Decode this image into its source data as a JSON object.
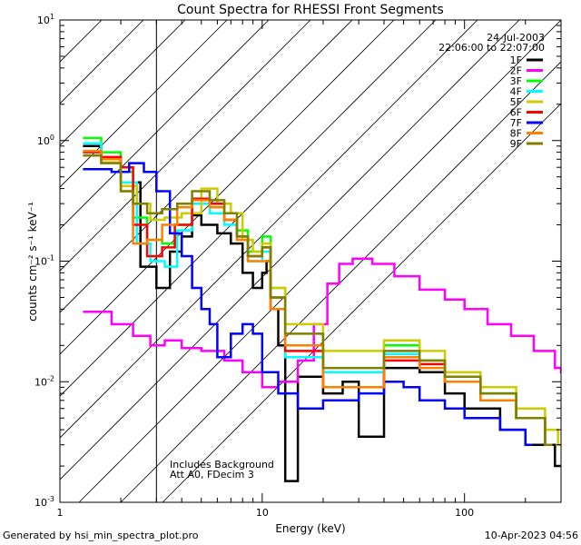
{
  "chart_data": {
    "type": "line",
    "title": "Count Spectra for RHESSI Front Segments",
    "xlabel": "Energy (keV)",
    "ylabel": "counts cm⁻² s⁻¹ keV⁻¹",
    "xscale": "log",
    "yscale": "log",
    "xlim": [
      1,
      300
    ],
    "ylim": [
      0.001,
      10
    ],
    "x_ticks": [
      {
        "value": 1,
        "label": "1"
      },
      {
        "value": 10,
        "label": "10"
      },
      {
        "value": 100,
        "label": "100"
      }
    ],
    "y_ticks": [
      {
        "value": 0.001,
        "base": "10",
        "exp": "-3"
      },
      {
        "value": 0.01,
        "base": "10",
        "exp": "-2"
      },
      {
        "value": 0.1,
        "base": "10",
        "exp": "-1"
      },
      {
        "value": 1,
        "base": "10",
        "exp": "0"
      },
      {
        "value": 10,
        "base": "10",
        "exp": "1"
      }
    ],
    "hatched_region": {
      "x_from": 1,
      "x_to": 3
    },
    "date": "24-Jul-2003",
    "time_range": "22:06:00 to 22:07:00",
    "notes": [
      "Includes Background",
      "Att A0, FDecim 3"
    ],
    "legend_position": "top-right",
    "series": [
      {
        "name": "1F",
        "color": "#000000",
        "points": [
          [
            1.3,
            0.9
          ],
          [
            1.6,
            0.72
          ],
          [
            2.0,
            0.45
          ],
          [
            2.5,
            0.09
          ],
          [
            3.0,
            0.06
          ],
          [
            3.5,
            0.12
          ],
          [
            4.0,
            0.16
          ],
          [
            4.5,
            0.24
          ],
          [
            5.0,
            0.2
          ],
          [
            6.0,
            0.17
          ],
          [
            7.0,
            0.14
          ],
          [
            8.0,
            0.08
          ],
          [
            9.0,
            0.06
          ],
          [
            10.0,
            0.08
          ],
          [
            10.5,
            0.1
          ],
          [
            11.0,
            0.04
          ],
          [
            12.0,
            0.02
          ],
          [
            13.0,
            0.0015
          ],
          [
            15.0,
            0.011
          ],
          [
            20.0,
            0.008
          ],
          [
            25.0,
            0.01
          ],
          [
            30.0,
            0.0035
          ],
          [
            40.0,
            0.013
          ],
          [
            50.0,
            0.013
          ],
          [
            60.0,
            0.012
          ],
          [
            80.0,
            0.008
          ],
          [
            100.0,
            0.006
          ],
          [
            150.0,
            0.004
          ],
          [
            200.0,
            0.003
          ],
          [
            280.0,
            0.002
          ]
        ]
      },
      {
        "name": "2F",
        "color": "#ff00ff",
        "points": [
          [
            1.3,
            0.038
          ],
          [
            1.8,
            0.03
          ],
          [
            2.3,
            0.024
          ],
          [
            2.8,
            0.02
          ],
          [
            3.3,
            0.022
          ],
          [
            4.0,
            0.019
          ],
          [
            5.0,
            0.018
          ],
          [
            6.5,
            0.015
          ],
          [
            8.0,
            0.012
          ],
          [
            10.0,
            0.009
          ],
          [
            12.0,
            0.01
          ],
          [
            15.0,
            0.015
          ],
          [
            18.0,
            0.03
          ],
          [
            21.0,
            0.065
          ],
          [
            24.0,
            0.095
          ],
          [
            28.0,
            0.105
          ],
          [
            35.0,
            0.095
          ],
          [
            45.0,
            0.075
          ],
          [
            60.0,
            0.058
          ],
          [
            80.0,
            0.048
          ],
          [
            100.0,
            0.04
          ],
          [
            130.0,
            0.03
          ],
          [
            170.0,
            0.024
          ],
          [
            220.0,
            0.018
          ],
          [
            280.0,
            0.013
          ],
          [
            300.0,
            0.012
          ]
        ]
      },
      {
        "name": "3F",
        "color": "#00ff00",
        "points": [
          [
            1.3,
            1.05
          ],
          [
            1.6,
            0.8
          ],
          [
            2.0,
            0.55
          ],
          [
            2.3,
            0.23
          ],
          [
            2.7,
            0.15
          ],
          [
            3.2,
            0.14
          ],
          [
            3.7,
            0.2
          ],
          [
            4.5,
            0.3
          ],
          [
            5.5,
            0.28
          ],
          [
            6.5,
            0.22
          ],
          [
            7.5,
            0.18
          ],
          [
            8.5,
            0.12
          ],
          [
            10.0,
            0.16
          ],
          [
            11.0,
            0.06
          ],
          [
            13.0,
            0.02
          ],
          [
            20.0,
            0.012
          ],
          [
            40.0,
            0.02
          ],
          [
            60.0,
            0.015
          ],
          [
            80.0,
            0.01
          ],
          [
            120.0,
            0.008
          ],
          [
            180.0,
            0.005
          ],
          [
            250.0,
            0.003
          ]
        ]
      },
      {
        "name": "4F",
        "color": "#00ffff",
        "points": [
          [
            1.3,
            0.95
          ],
          [
            1.6,
            0.72
          ],
          [
            2.0,
            0.45
          ],
          [
            2.4,
            0.14
          ],
          [
            2.8,
            0.1
          ],
          [
            3.3,
            0.09
          ],
          [
            3.8,
            0.18
          ],
          [
            4.5,
            0.3
          ],
          [
            5.5,
            0.25
          ],
          [
            6.5,
            0.2
          ],
          [
            7.5,
            0.15
          ],
          [
            8.5,
            0.1
          ],
          [
            10.0,
            0.12
          ],
          [
            11.0,
            0.05
          ],
          [
            13.0,
            0.016
          ],
          [
            20.0,
            0.012
          ],
          [
            40.0,
            0.017
          ],
          [
            60.0,
            0.014
          ],
          [
            80.0,
            0.01
          ],
          [
            120.0,
            0.007
          ],
          [
            180.0,
            0.005
          ],
          [
            250.0,
            0.003
          ]
        ]
      },
      {
        "name": "5F",
        "color": "#cccc00",
        "points": [
          [
            1.3,
            0.82
          ],
          [
            1.6,
            0.66
          ],
          [
            2.0,
            0.42
          ],
          [
            2.4,
            0.3
          ],
          [
            2.8,
            0.22
          ],
          [
            3.3,
            0.23
          ],
          [
            4.0,
            0.25
          ],
          [
            5.0,
            0.4
          ],
          [
            6.0,
            0.3
          ],
          [
            7.0,
            0.25
          ],
          [
            8.0,
            0.15
          ],
          [
            9.0,
            0.12
          ],
          [
            10.0,
            0.14
          ],
          [
            11.0,
            0.06
          ],
          [
            13.0,
            0.03
          ],
          [
            20.0,
            0.018
          ],
          [
            40.0,
            0.022
          ],
          [
            60.0,
            0.018
          ],
          [
            80.0,
            0.012
          ],
          [
            120.0,
            0.009
          ],
          [
            180.0,
            0.006
          ],
          [
            250.0,
            0.004
          ],
          [
            290.0,
            0.003
          ]
        ]
      },
      {
        "name": "6F",
        "color": "#ff0000",
        "points": [
          [
            1.3,
            0.8
          ],
          [
            1.6,
            0.73
          ],
          [
            2.0,
            0.6
          ],
          [
            2.3,
            0.2
          ],
          [
            2.7,
            0.11
          ],
          [
            3.2,
            0.13
          ],
          [
            3.7,
            0.2
          ],
          [
            4.5,
            0.33
          ],
          [
            5.5,
            0.3
          ],
          [
            6.5,
            0.22
          ],
          [
            7.5,
            0.16
          ],
          [
            8.5,
            0.11
          ],
          [
            10.0,
            0.13
          ],
          [
            11.0,
            0.05
          ],
          [
            13.0,
            0.018
          ],
          [
            20.0,
            0.009
          ],
          [
            40.0,
            0.015
          ],
          [
            60.0,
            0.014
          ],
          [
            80.0,
            0.01
          ],
          [
            120.0,
            0.007
          ],
          [
            180.0,
            0.005
          ],
          [
            250.0,
            0.003
          ]
        ]
      },
      {
        "name": "7F",
        "color": "#0000ff",
        "points": [
          [
            1.3,
            0.58
          ],
          [
            1.8,
            0.55
          ],
          [
            2.2,
            0.65
          ],
          [
            2.6,
            0.55
          ],
          [
            3.0,
            0.38
          ],
          [
            3.5,
            0.17
          ],
          [
            4.0,
            0.11
          ],
          [
            4.5,
            0.06
          ],
          [
            5.0,
            0.04
          ],
          [
            5.5,
            0.03
          ],
          [
            6.0,
            0.016
          ],
          [
            7.0,
            0.025
          ],
          [
            8.0,
            0.03
          ],
          [
            9.0,
            0.025
          ],
          [
            10.0,
            0.012
          ],
          [
            12.0,
            0.008
          ],
          [
            15.0,
            0.006
          ],
          [
            20.0,
            0.007
          ],
          [
            30.0,
            0.008
          ],
          [
            40.0,
            0.01
          ],
          [
            50.0,
            0.009
          ],
          [
            60.0,
            0.007
          ],
          [
            80.0,
            0.006
          ],
          [
            100.0,
            0.005
          ],
          [
            150.0,
            0.004
          ],
          [
            200.0,
            0.003
          ]
        ]
      },
      {
        "name": "8F",
        "color": "#ff8000",
        "points": [
          [
            1.3,
            0.82
          ],
          [
            1.6,
            0.7
          ],
          [
            2.0,
            0.38
          ],
          [
            2.3,
            0.14
          ],
          [
            2.7,
            0.15
          ],
          [
            3.2,
            0.2
          ],
          [
            3.8,
            0.28
          ],
          [
            4.5,
            0.32
          ],
          [
            5.5,
            0.28
          ],
          [
            6.5,
            0.22
          ],
          [
            7.5,
            0.15
          ],
          [
            8.5,
            0.1
          ],
          [
            10.0,
            0.1
          ],
          [
            11.0,
            0.04
          ],
          [
            13.0,
            0.02
          ],
          [
            20.0,
            0.009
          ],
          [
            40.0,
            0.016
          ],
          [
            60.0,
            0.013
          ],
          [
            80.0,
            0.01
          ],
          [
            120.0,
            0.007
          ],
          [
            180.0,
            0.005
          ],
          [
            250.0,
            0.003
          ]
        ]
      },
      {
        "name": "9F",
        "color": "#808000",
        "points": [
          [
            1.3,
            0.75
          ],
          [
            1.6,
            0.65
          ],
          [
            2.0,
            0.38
          ],
          [
            2.3,
            0.3
          ],
          [
            2.7,
            0.25
          ],
          [
            3.2,
            0.27
          ],
          [
            3.8,
            0.3
          ],
          [
            4.5,
            0.38
          ],
          [
            5.5,
            0.32
          ],
          [
            6.5,
            0.25
          ],
          [
            7.5,
            0.16
          ],
          [
            8.5,
            0.11
          ],
          [
            10.0,
            0.13
          ],
          [
            11.0,
            0.05
          ],
          [
            13.0,
            0.025
          ],
          [
            20.0,
            0.013
          ],
          [
            40.0,
            0.018
          ],
          [
            60.0,
            0.015
          ],
          [
            80.0,
            0.011
          ],
          [
            120.0,
            0.008
          ],
          [
            180.0,
            0.005
          ],
          [
            250.0,
            0.003
          ]
        ]
      }
    ]
  },
  "footer": {
    "generated_by": "Generated by hsi_min_spectra_plot.pro",
    "timestamp": "10-Apr-2023 04:56"
  }
}
